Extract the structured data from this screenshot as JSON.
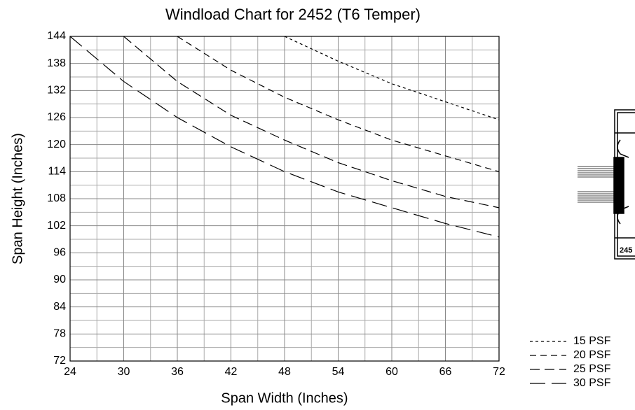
{
  "chart_data": {
    "type": "line",
    "title": "Windload Chart for 2452 (T6 Temper)",
    "x_label": "Span Width (Inches)",
    "y_label": "Span Height (Inches)",
    "xlim": [
      24,
      72
    ],
    "xticks": [
      24,
      30,
      36,
      42,
      48,
      54,
      60,
      66,
      72
    ],
    "ylim": [
      72,
      144
    ],
    "yticks": [
      72,
      78,
      84,
      90,
      96,
      102,
      108,
      114,
      120,
      126,
      132,
      138,
      144
    ],
    "x_minor_ticks": [
      27,
      33,
      39,
      45,
      51,
      57,
      63,
      69
    ],
    "y_minor_ticks": [
      75,
      81,
      87,
      93,
      99,
      105,
      111,
      117,
      123,
      129,
      135,
      141
    ],
    "grid": true,
    "legend": "lower right",
    "profile_label": "245",
    "series": [
      {
        "name": "15 PSF",
        "color": "#000000",
        "dash": "4 4",
        "x": [
          48,
          54,
          60,
          66,
          72
        ],
        "values": [
          144,
          138.5,
          133.5,
          129.5,
          125.5
        ]
      },
      {
        "name": "20 PSF",
        "color": "#000000",
        "dash": "9 6",
        "x": [
          36,
          42,
          48,
          54,
          60,
          66,
          72
        ],
        "values": [
          144,
          136.5,
          130.5,
          125.5,
          121,
          117.5,
          114
        ]
      },
      {
        "name": "25 PSF",
        "color": "#000000",
        "dash": "14 7",
        "x": [
          30,
          36,
          42,
          48,
          54,
          60,
          66,
          72
        ],
        "values": [
          144,
          134,
          126.5,
          121,
          116,
          112,
          108.5,
          106
        ]
      },
      {
        "name": "30 PSF",
        "color": "#000000",
        "dash": "22 9",
        "x": [
          24,
          27,
          30,
          36,
          42,
          48,
          54,
          60,
          66,
          72
        ],
        "values": [
          144,
          139,
          134,
          126,
          119.5,
          114,
          109.5,
          106,
          102.5,
          99.5
        ]
      }
    ]
  }
}
